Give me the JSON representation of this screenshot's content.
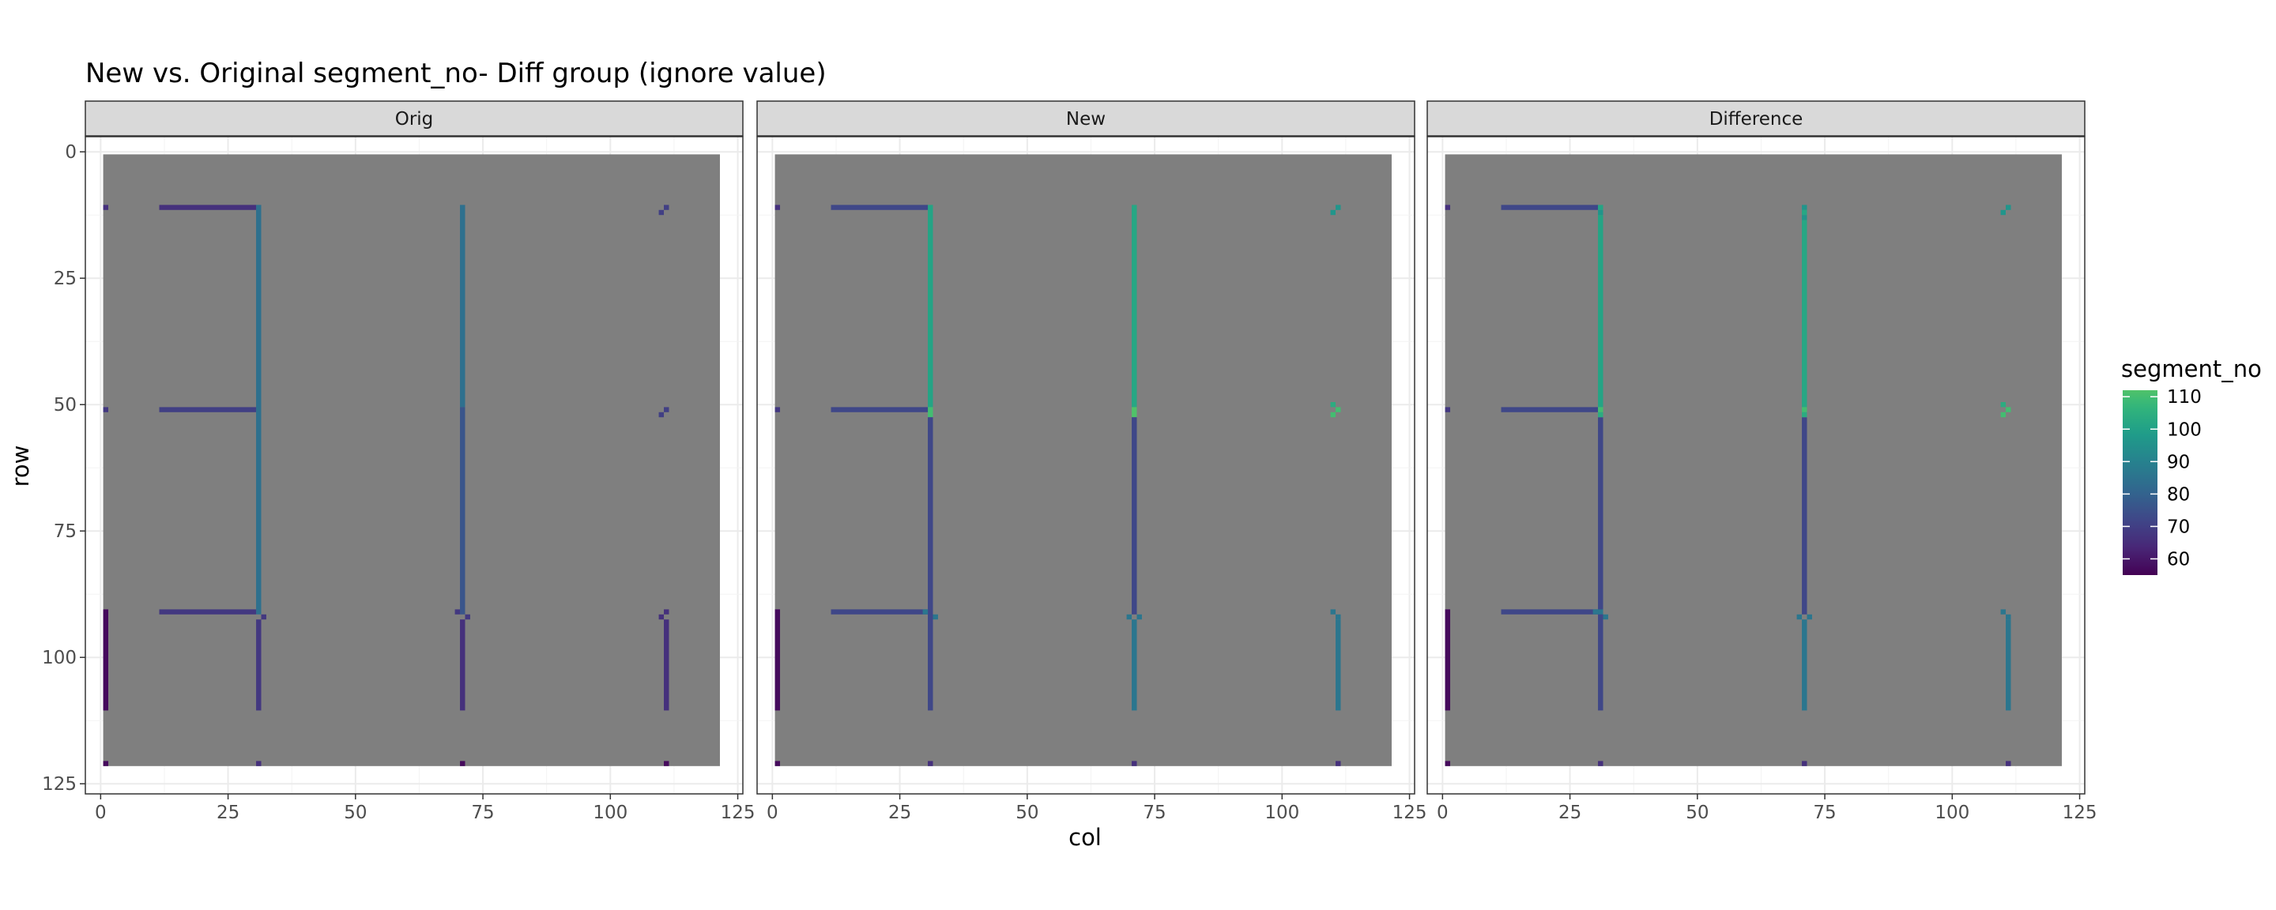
{
  "chart_data": {
    "type": "heatmap",
    "title": "New vs. Original segment_no- Diff group (ignore value)",
    "xlabel": "col",
    "ylabel": "row",
    "xlim": [
      -3,
      126
    ],
    "ylim": [
      127,
      -3
    ],
    "x_ticks": [
      0,
      25,
      50,
      75,
      100,
      125
    ],
    "y_ticks": [
      0,
      25,
      50,
      75,
      100,
      125
    ],
    "background_value_color": "#7f7f7f",
    "background_extent": {
      "x": [
        0.5,
        121.5
      ],
      "y": [
        0.5,
        121.5
      ]
    },
    "legend": {
      "title": "segment_no",
      "placement": "right",
      "range": [
        55,
        112
      ],
      "breaks": [
        60,
        70,
        80,
        90,
        100,
        110
      ],
      "colormap": "viridis"
    },
    "facets": [
      {
        "label": "Orig",
        "segments": [
          {
            "orient": "v",
            "fixed": 1,
            "from": 91,
            "to": 110,
            "value": 57
          },
          {
            "orient": "v",
            "fixed": 31,
            "from": 11,
            "to": 91,
            "value": 84
          },
          {
            "orient": "v",
            "fixed": 31,
            "from": 93,
            "to": 110,
            "value": 68
          },
          {
            "orient": "v",
            "fixed": 71,
            "from": 11,
            "to": 50,
            "value": 84
          },
          {
            "orient": "v",
            "fixed": 71,
            "from": 51,
            "to": 91,
            "value": 76
          },
          {
            "orient": "v",
            "fixed": 71,
            "from": 93,
            "to": 110,
            "value": 66
          },
          {
            "orient": "v",
            "fixed": 111,
            "from": 93,
            "to": 110,
            "value": 66
          },
          {
            "orient": "h",
            "fixed": 11,
            "from": 12,
            "to": 30,
            "value": 66
          },
          {
            "orient": "h",
            "fixed": 51,
            "from": 12,
            "to": 30,
            "value": 70
          },
          {
            "orient": "h",
            "fixed": 91,
            "from": 12,
            "to": 30,
            "value": 68
          }
        ],
        "points": [
          {
            "col": 1,
            "row": 11,
            "value": 66
          },
          {
            "col": 1,
            "row": 51,
            "value": 68
          },
          {
            "col": 1,
            "row": 121,
            "value": 57
          },
          {
            "col": 31,
            "row": 121,
            "value": 66
          },
          {
            "col": 71,
            "row": 121,
            "value": 57
          },
          {
            "col": 111,
            "row": 121,
            "value": 57
          },
          {
            "col": 110,
            "row": 12,
            "value": 70
          },
          {
            "col": 111,
            "row": 11,
            "value": 70
          },
          {
            "col": 110,
            "row": 52,
            "value": 70
          },
          {
            "col": 111,
            "row": 51,
            "value": 70
          },
          {
            "col": 32,
            "row": 92,
            "value": 68
          },
          {
            "col": 70,
            "row": 91,
            "value": 68
          },
          {
            "col": 72,
            "row": 92,
            "value": 68
          },
          {
            "col": 110,
            "row": 92,
            "value": 66
          },
          {
            "col": 111,
            "row": 91,
            "value": 66
          }
        ]
      },
      {
        "label": "New",
        "segments": [
          {
            "orient": "v",
            "fixed": 1,
            "from": 91,
            "to": 110,
            "value": 57
          },
          {
            "orient": "v",
            "fixed": 31,
            "from": 11,
            "to": 50,
            "value": 101
          },
          {
            "orient": "v",
            "fixed": 31,
            "from": 51,
            "to": 52,
            "value": 110
          },
          {
            "orient": "v",
            "fixed": 31,
            "from": 53,
            "to": 110,
            "value": 72
          },
          {
            "orient": "v",
            "fixed": 71,
            "from": 11,
            "to": 50,
            "value": 102
          },
          {
            "orient": "v",
            "fixed": 71,
            "from": 51,
            "to": 52,
            "value": 112
          },
          {
            "orient": "v",
            "fixed": 71,
            "from": 53,
            "to": 91,
            "value": 72
          },
          {
            "orient": "v",
            "fixed": 71,
            "from": 93,
            "to": 110,
            "value": 86
          },
          {
            "orient": "v",
            "fixed": 111,
            "from": 93,
            "to": 110,
            "value": 86
          },
          {
            "orient": "h",
            "fixed": 11,
            "from": 12,
            "to": 30,
            "value": 72
          },
          {
            "orient": "h",
            "fixed": 51,
            "from": 12,
            "to": 30,
            "value": 72
          },
          {
            "orient": "h",
            "fixed": 91,
            "from": 12,
            "to": 30,
            "value": 72
          }
        ],
        "points": [
          {
            "col": 1,
            "row": 11,
            "value": 66
          },
          {
            "col": 1,
            "row": 51,
            "value": 68
          },
          {
            "col": 1,
            "row": 121,
            "value": 57
          },
          {
            "col": 31,
            "row": 121,
            "value": 66
          },
          {
            "col": 71,
            "row": 121,
            "value": 66
          },
          {
            "col": 111,
            "row": 121,
            "value": 66
          },
          {
            "col": 110,
            "row": 12,
            "value": 96
          },
          {
            "col": 111,
            "row": 11,
            "value": 96
          },
          {
            "col": 110,
            "row": 50,
            "value": 104
          },
          {
            "col": 111,
            "row": 51,
            "value": 110
          },
          {
            "col": 110,
            "row": 52,
            "value": 110
          },
          {
            "col": 30,
            "row": 91,
            "value": 86
          },
          {
            "col": 32,
            "row": 92,
            "value": 86
          },
          {
            "col": 70,
            "row": 92,
            "value": 86
          },
          {
            "col": 72,
            "row": 92,
            "value": 86
          },
          {
            "col": 110,
            "row": 91,
            "value": 86
          },
          {
            "col": 111,
            "row": 92,
            "value": 86
          }
        ]
      },
      {
        "label": "Difference",
        "segments": [
          {
            "orient": "v",
            "fixed": 1,
            "from": 91,
            "to": 110,
            "value": 57
          },
          {
            "orient": "v",
            "fixed": 31,
            "from": 13,
            "to": 50,
            "value": 101
          },
          {
            "orient": "v",
            "fixed": 31,
            "from": 53,
            "to": 110,
            "value": 72
          },
          {
            "orient": "v",
            "fixed": 71,
            "from": 14,
            "to": 50,
            "value": 102
          },
          {
            "orient": "v",
            "fixed": 71,
            "from": 53,
            "to": 91,
            "value": 72
          },
          {
            "orient": "v",
            "fixed": 71,
            "from": 93,
            "to": 110,
            "value": 86
          },
          {
            "orient": "v",
            "fixed": 111,
            "from": 93,
            "to": 110,
            "value": 86
          },
          {
            "orient": "h",
            "fixed": 11,
            "from": 12,
            "to": 30,
            "value": 72
          },
          {
            "orient": "h",
            "fixed": 51,
            "from": 12,
            "to": 30,
            "value": 72
          },
          {
            "orient": "h",
            "fixed": 91,
            "from": 12,
            "to": 30,
            "value": 72
          }
        ],
        "points": [
          {
            "col": 1,
            "row": 11,
            "value": 66
          },
          {
            "col": 1,
            "row": 51,
            "value": 68
          },
          {
            "col": 1,
            "row": 121,
            "value": 57
          },
          {
            "col": 31,
            "row": 121,
            "value": 66
          },
          {
            "col": 71,
            "row": 121,
            "value": 66
          },
          {
            "col": 111,
            "row": 121,
            "value": 66
          },
          {
            "col": 31,
            "row": 11,
            "value": 101
          },
          {
            "col": 31,
            "row": 12,
            "value": 96
          },
          {
            "col": 31,
            "row": 51,
            "value": 110
          },
          {
            "col": 31,
            "row": 52,
            "value": 104
          },
          {
            "col": 31,
            "row": 91,
            "value": 86
          },
          {
            "col": 71,
            "row": 11,
            "value": 96
          },
          {
            "col": 71,
            "row": 12,
            "value": 102
          },
          {
            "col": 71,
            "row": 13,
            "value": 96
          },
          {
            "col": 71,
            "row": 51,
            "value": 110
          },
          {
            "col": 71,
            "row": 52,
            "value": 104
          },
          {
            "col": 111,
            "row": 11,
            "value": 96
          },
          {
            "col": 110,
            "row": 12,
            "value": 96
          },
          {
            "col": 110,
            "row": 50,
            "value": 104
          },
          {
            "col": 111,
            "row": 51,
            "value": 110
          },
          {
            "col": 110,
            "row": 52,
            "value": 110
          },
          {
            "col": 30,
            "row": 91,
            "value": 86
          },
          {
            "col": 32,
            "row": 92,
            "value": 86
          },
          {
            "col": 70,
            "row": 92,
            "value": 86
          },
          {
            "col": 72,
            "row": 92,
            "value": 86
          },
          {
            "col": 110,
            "row": 91,
            "value": 86
          },
          {
            "col": 111,
            "row": 92,
            "value": 86
          }
        ]
      }
    ]
  }
}
